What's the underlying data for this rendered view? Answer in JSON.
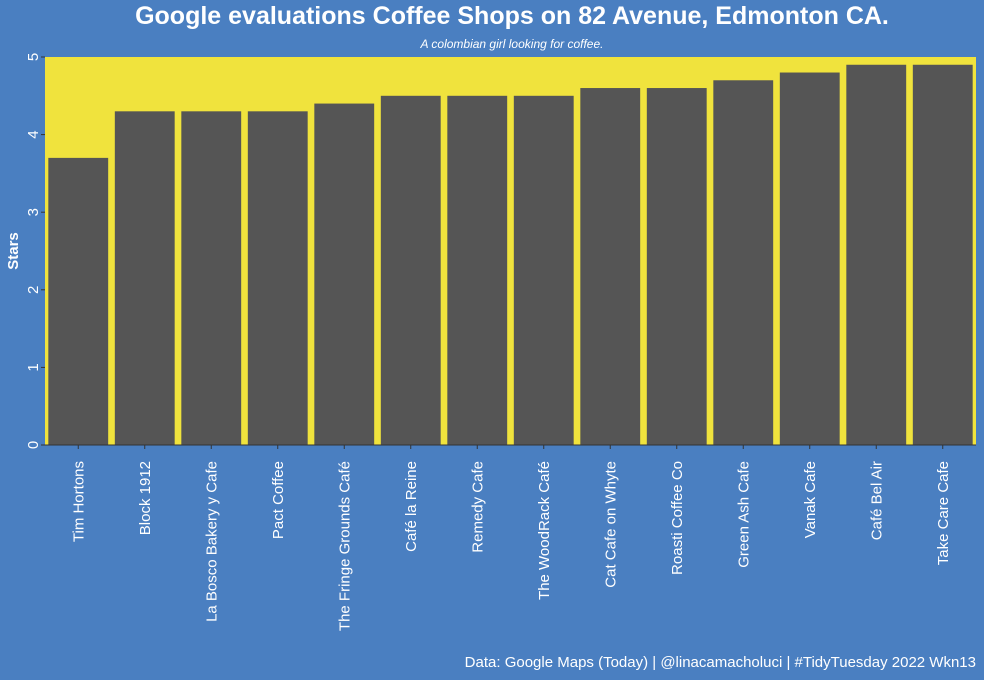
{
  "title": "Google evaluations Coffee Shops on 82 Avenue, Edmonton CA.",
  "subtitle": "A colombian girl looking for coffee.",
  "caption": "Data: Google Maps (Today) | @linacamacholuci | #TidyTuesday 2022 Wkn13",
  "colors": {
    "background": "#4a7fc1",
    "panel": "#f0e33d",
    "bar": "#555555",
    "text": "#ffffff"
  },
  "chart_data": {
    "type": "bar",
    "title": "Google evaluations Coffee Shops on 82 Avenue, Edmonton CA.",
    "subtitle": "A colombian girl looking for coffee.",
    "xlabel": "",
    "ylabel": "Stars",
    "ylim": [
      0,
      5
    ],
    "yticks": [
      0,
      1,
      2,
      3,
      4,
      5
    ],
    "grid": false,
    "categories": [
      "Tim Hortons",
      "Block 1912",
      "La Bosco Bakery y Cafe",
      "Pact Coffee",
      "The Fringe Grounds Café",
      "Café la Reine",
      "Remedy Cafe",
      "The WoodRack Café",
      "Cat Cafe on Whyte",
      "Roasti Coffee Co",
      "Green Ash Cafe",
      "Vanak Cafe",
      "Café Bel Air",
      "Take Care Cafe"
    ],
    "values": [
      3.7,
      4.3,
      4.3,
      4.3,
      4.4,
      4.5,
      4.5,
      4.5,
      4.6,
      4.6,
      4.7,
      4.8,
      4.9,
      4.9
    ]
  }
}
